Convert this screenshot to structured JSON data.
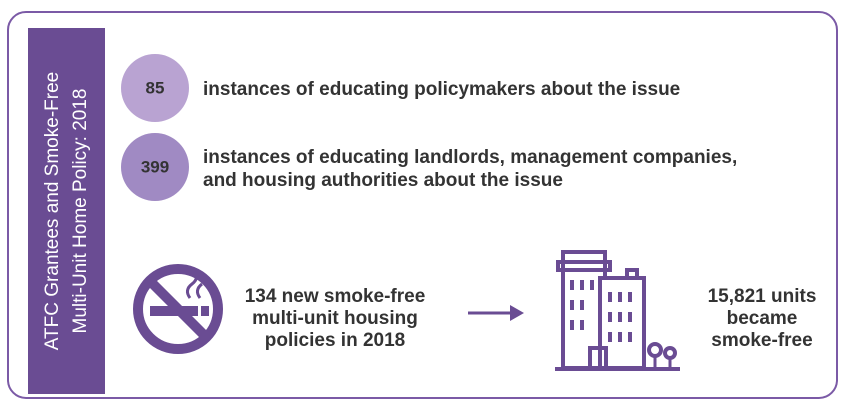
{
  "sidebar": {
    "title_lines": [
      "ATFC Grantees and Smoke-Free",
      "Multi-Unit Home Policy: 2018"
    ]
  },
  "stats": [
    {
      "value": 85,
      "text_lines": [
        "instances of educating policymakers about the issue"
      ]
    },
    {
      "value": 399,
      "text_lines": [
        "instances of educating landlords, management companies,",
        "and housing authorities about the issue"
      ]
    }
  ],
  "policies": {
    "number": 134,
    "text_lines": [
      "new smoke-free",
      "multi-unit housing",
      "policies in 2018"
    ]
  },
  "result": {
    "number": "15,821",
    "text_lines": [
      "units",
      "became",
      "smoke-free"
    ]
  }
}
